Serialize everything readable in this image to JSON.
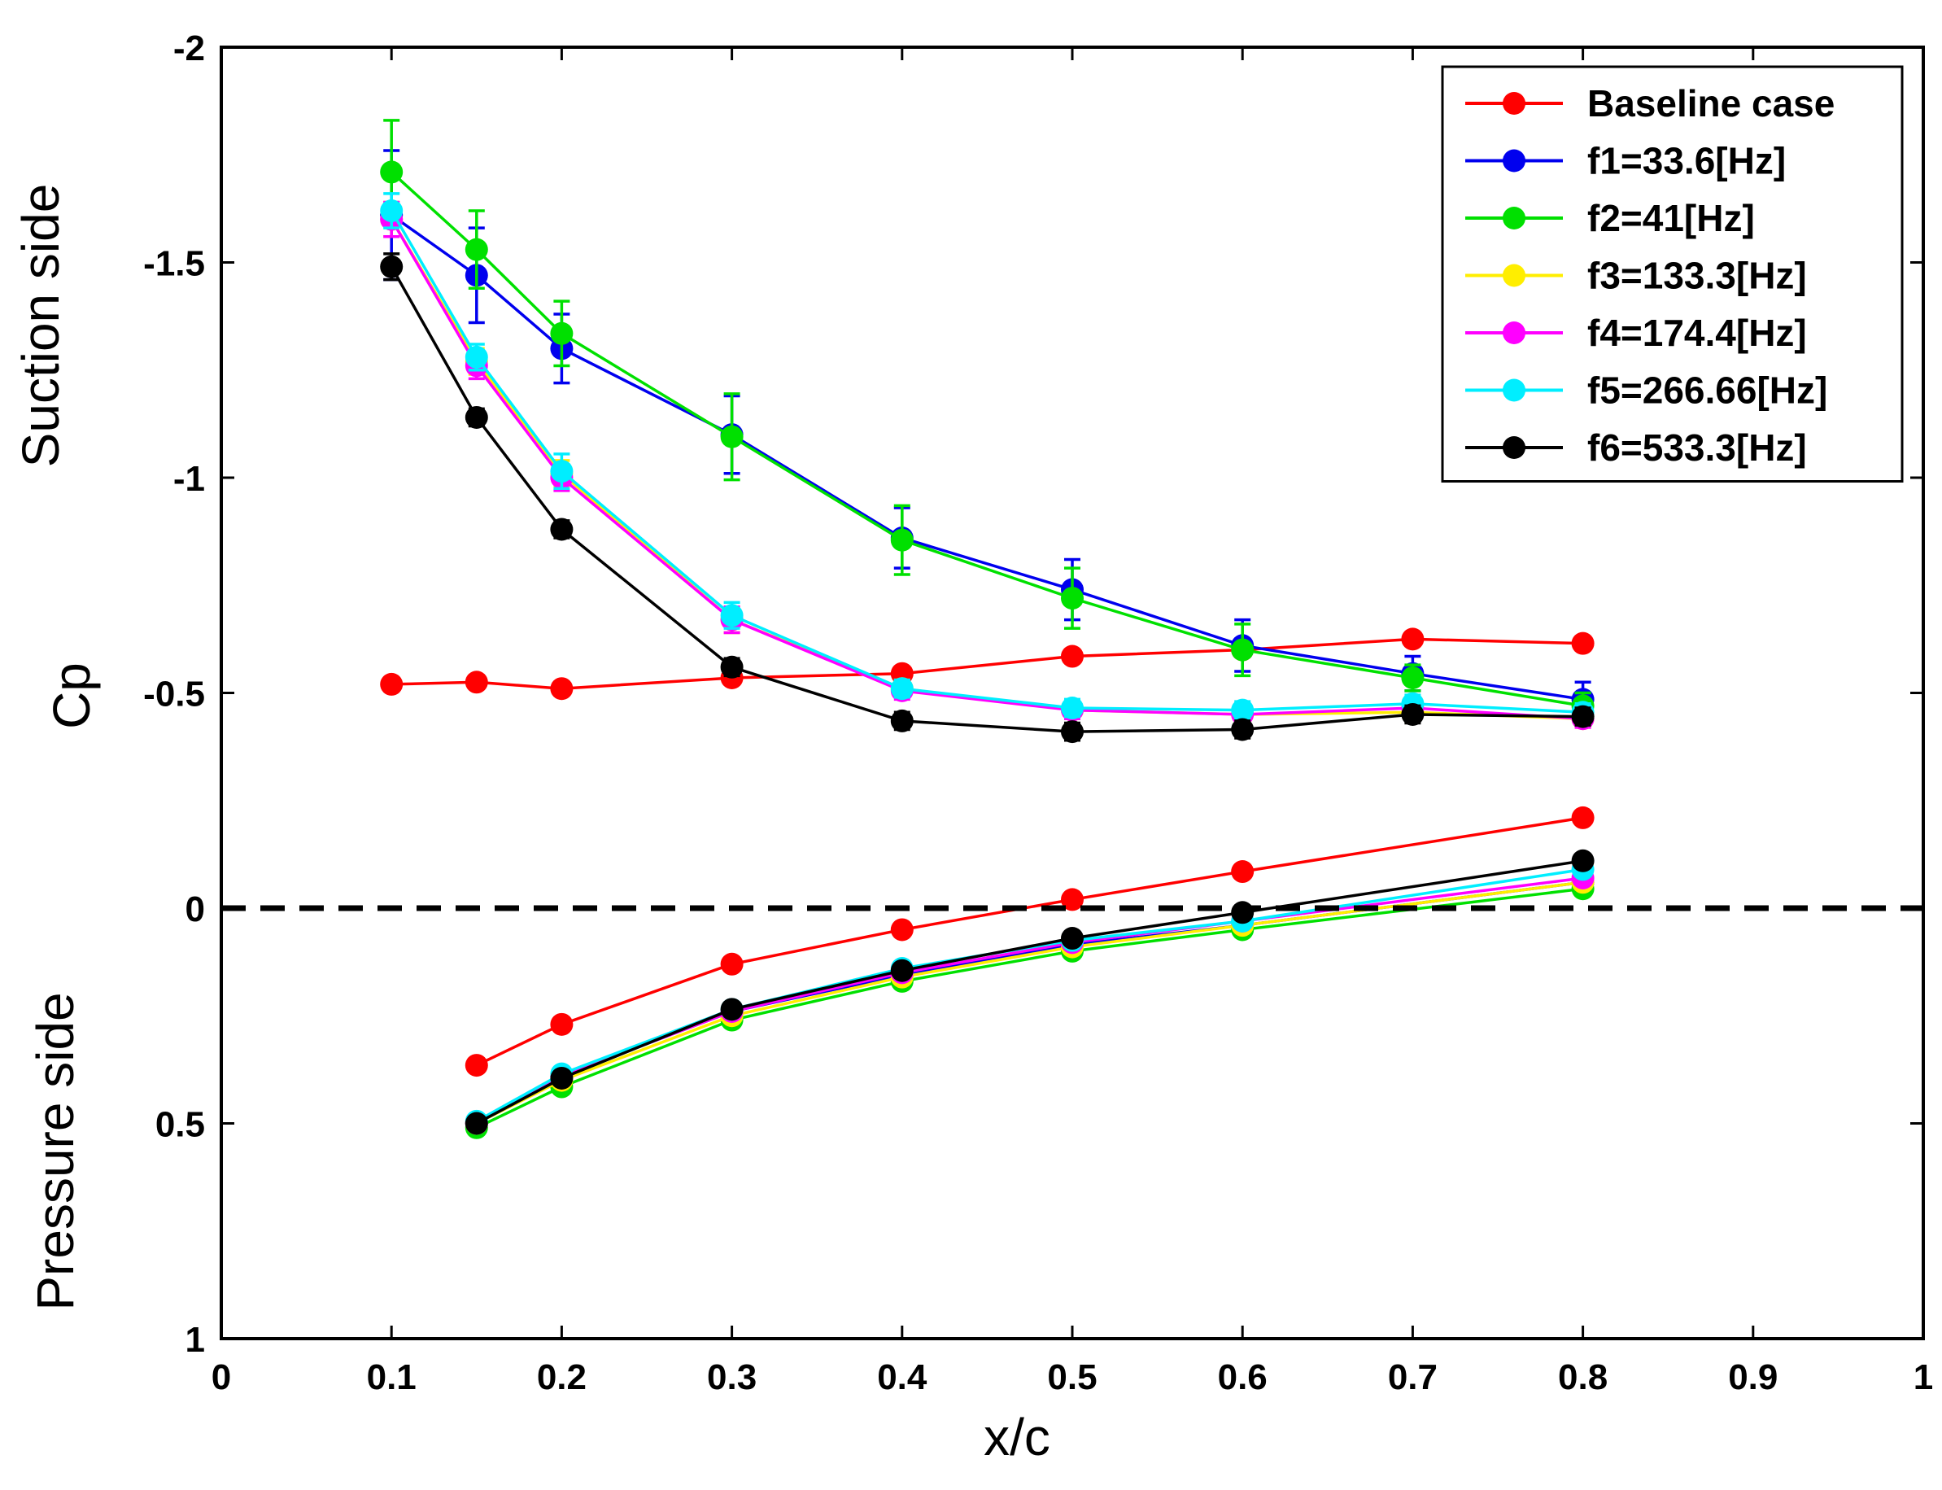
{
  "chart_data": {
    "type": "line",
    "title": "",
    "xlabel": "x/c",
    "ylabel": "Cp",
    "ylabel_top": "Suction side",
    "ylabel_bottom": "Pressure side",
    "xlim": [
      0,
      1
    ],
    "ylim": [
      -2,
      1
    ],
    "y_reversed": true,
    "legend_position": "top-right",
    "grid": false,
    "x_ticks": [
      0,
      0.1,
      0.2,
      0.3,
      0.4,
      0.5,
      0.6,
      0.7,
      0.8,
      0.9,
      1
    ],
    "x_tick_labels": [
      "0",
      "0.1",
      "0.2",
      "0.3",
      "0.4",
      "0.5",
      "0.6",
      "0.7",
      "0.8",
      "0.9",
      "1"
    ],
    "y_ticks": [
      -2,
      -1.5,
      -1,
      -0.5,
      0,
      0.5,
      1
    ],
    "y_tick_labels": [
      "-2",
      "-1.5",
      "-1",
      "-0.5",
      "0",
      "0.5",
      "1"
    ],
    "reference_line": {
      "y": 0,
      "style": "dashed",
      "color": "#000000"
    },
    "series": [
      {
        "name": "Baseline case",
        "color": "#ff0000",
        "suction": {
          "x": [
            0.1,
            0.15,
            0.2,
            0.3,
            0.4,
            0.5,
            0.6,
            0.7,
            0.8
          ],
          "y": [
            -0.52,
            -0.525,
            -0.51,
            -0.535,
            -0.545,
            -0.585,
            -0.6,
            -0.625,
            -0.615
          ],
          "err": [
            0.015,
            0.015,
            0.015,
            0.015,
            0.015,
            0.015,
            0.015,
            0.015,
            0.015
          ]
        },
        "pressure": {
          "x": [
            0.15,
            0.2,
            0.3,
            0.4,
            0.5,
            0.6,
            0.8
          ],
          "y": [
            0.365,
            0.27,
            0.13,
            0.05,
            -0.02,
            -0.085,
            -0.21
          ]
        }
      },
      {
        "name": "f1=33.6[Hz]",
        "color": "#0000ee",
        "suction": {
          "x": [
            0.1,
            0.15,
            0.2,
            0.3,
            0.4,
            0.5,
            0.6,
            0.7,
            0.8
          ],
          "y": [
            -1.61,
            -1.47,
            -1.3,
            -1.1,
            -0.86,
            -0.74,
            -0.61,
            -0.545,
            -0.485
          ],
          "err": [
            0.15,
            0.11,
            0.08,
            0.09,
            0.07,
            0.07,
            0.06,
            0.04,
            0.04
          ]
        },
        "pressure": {
          "x": [
            0.15,
            0.2,
            0.3,
            0.4,
            0.5,
            0.6,
            0.8
          ],
          "y": [
            0.5,
            0.39,
            0.24,
            0.155,
            0.085,
            0.04,
            -0.06
          ]
        }
      },
      {
        "name": "f2=41[Hz]",
        "color": "#00e000",
        "suction": {
          "x": [
            0.1,
            0.15,
            0.2,
            0.3,
            0.4,
            0.5,
            0.6,
            0.7,
            0.8
          ],
          "y": [
            -1.71,
            -1.53,
            -1.335,
            -1.095,
            -0.855,
            -0.72,
            -0.6,
            -0.535,
            -0.47
          ],
          "err": [
            0.12,
            0.09,
            0.075,
            0.1,
            0.08,
            0.07,
            0.06,
            0.03,
            0.03
          ]
        },
        "pressure": {
          "x": [
            0.15,
            0.2,
            0.3,
            0.4,
            0.5,
            0.6,
            0.8
          ],
          "y": [
            0.51,
            0.415,
            0.26,
            0.17,
            0.1,
            0.05,
            -0.045
          ]
        }
      },
      {
        "name": "f3=133.3[Hz]",
        "color": "#ffee00",
        "suction": {
          "x": [
            0.1,
            0.15,
            0.2,
            0.3,
            0.4,
            0.5,
            0.6,
            0.7,
            0.8
          ],
          "y": [
            -1.6,
            -1.27,
            -1.01,
            -0.67,
            -0.51,
            -0.46,
            -0.45,
            -0.455,
            -0.44
          ],
          "err": [
            0.04,
            0.03,
            0.03,
            0.03,
            0.02,
            0.02,
            0.02,
            0.02,
            0.02
          ]
        },
        "pressure": {
          "x": [
            0.15,
            0.2,
            0.3,
            0.4,
            0.5,
            0.6,
            0.8
          ],
          "y": [
            0.5,
            0.4,
            0.25,
            0.16,
            0.09,
            0.04,
            -0.06
          ]
        }
      },
      {
        "name": "f4=174.4[Hz]",
        "color": "#ff00ff",
        "suction": {
          "x": [
            0.1,
            0.15,
            0.2,
            0.3,
            0.4,
            0.5,
            0.6,
            0.7,
            0.8
          ],
          "y": [
            -1.6,
            -1.26,
            -1.0,
            -0.67,
            -0.505,
            -0.46,
            -0.45,
            -0.465,
            -0.44
          ],
          "err": [
            0.04,
            0.03,
            0.03,
            0.03,
            0.02,
            0.02,
            0.02,
            0.02,
            0.02
          ]
        },
        "pressure": {
          "x": [
            0.15,
            0.2,
            0.3,
            0.4,
            0.5,
            0.6,
            0.8
          ],
          "y": [
            0.5,
            0.39,
            0.24,
            0.15,
            0.08,
            0.03,
            -0.07
          ]
        }
      },
      {
        "name": "f5=266.66[Hz]",
        "color": "#00eeff",
        "suction": {
          "x": [
            0.1,
            0.15,
            0.2,
            0.3,
            0.4,
            0.5,
            0.6,
            0.7,
            0.8
          ],
          "y": [
            -1.62,
            -1.28,
            -1.015,
            -0.68,
            -0.51,
            -0.465,
            -0.46,
            -0.475,
            -0.455
          ],
          "err": [
            0.04,
            0.03,
            0.04,
            0.03,
            0.02,
            0.02,
            0.02,
            0.02,
            0.02
          ]
        },
        "pressure": {
          "x": [
            0.15,
            0.2,
            0.3,
            0.4,
            0.5,
            0.6,
            0.8
          ],
          "y": [
            0.495,
            0.385,
            0.235,
            0.14,
            0.075,
            0.03,
            -0.09
          ]
        }
      },
      {
        "name": "f6=533.3[Hz]",
        "color": "#000000",
        "suction": {
          "x": [
            0.1,
            0.15,
            0.2,
            0.3,
            0.4,
            0.5,
            0.6,
            0.7,
            0.8
          ],
          "y": [
            -1.49,
            -1.14,
            -0.88,
            -0.56,
            -0.435,
            -0.41,
            -0.415,
            -0.45,
            -0.445
          ],
          "err": [
            0.03,
            0.02,
            0.02,
            0.02,
            0.02,
            0.02,
            0.02,
            0.02,
            0.02
          ]
        },
        "pressure": {
          "x": [
            0.15,
            0.2,
            0.3,
            0.4,
            0.5,
            0.6,
            0.8
          ],
          "y": [
            0.5,
            0.395,
            0.235,
            0.145,
            0.07,
            0.01,
            -0.11
          ]
        }
      }
    ]
  }
}
